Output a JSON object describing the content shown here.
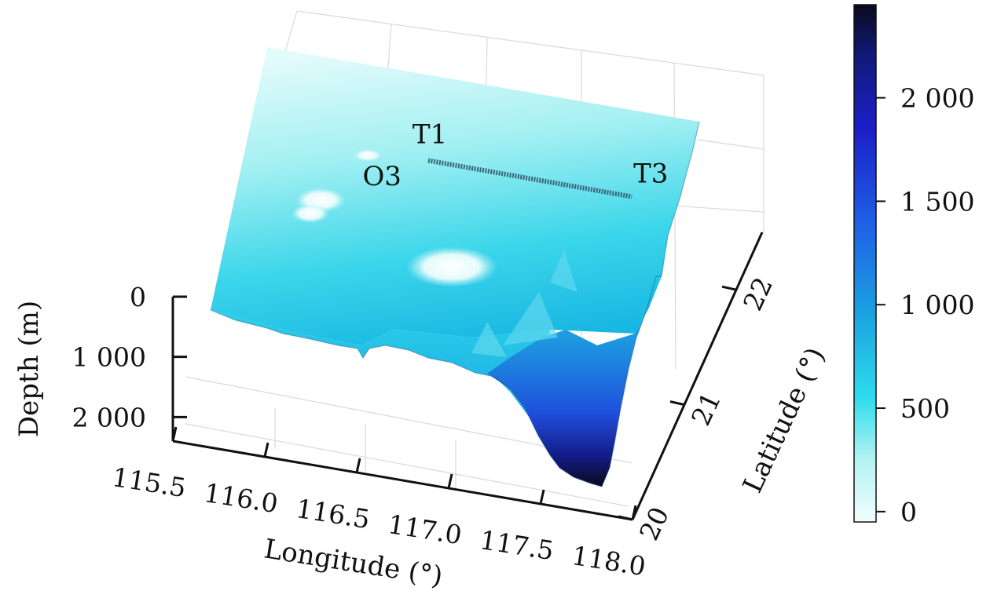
{
  "chart_data": {
    "type": "surface",
    "title": "",
    "x_axis": {
      "label": "Longitude (°)",
      "ticks": [
        "115.5",
        "116.0",
        "116.5",
        "117.0",
        "117.5",
        "118.0"
      ],
      "range": [
        115.5,
        118.0
      ]
    },
    "y_axis": {
      "label": "Latitude (°)",
      "ticks": [
        "20",
        "21",
        "22"
      ],
      "range": [
        20,
        22.5
      ]
    },
    "z_axis": {
      "label": "Depth (m)",
      "ticks": [
        "0",
        "1 000",
        "2 000"
      ],
      "range": [
        0,
        2400
      ]
    },
    "colorbar": {
      "ticks": [
        "0",
        "500",
        "1 000",
        "1 500",
        "2 000"
      ],
      "range": [
        -50,
        2450
      ],
      "colors": [
        "#f2fdfd",
        "#b3f3f3",
        "#2fdcec",
        "#1aa3e0",
        "#1f5fe6",
        "#1c1fc9",
        "#101a7a",
        "#0a0a1e"
      ]
    },
    "annotations": [
      {
        "text": "T1",
        "lon": 116.55,
        "lat": 21.65
      },
      {
        "text": "O3",
        "lon": 116.45,
        "lat": 21.55
      },
      {
        "text": "T3",
        "lon": 117.75,
        "lat": 21.55
      }
    ],
    "track": {
      "from": {
        "lon": 116.55,
        "lat": 21.65
      },
      "to": {
        "lon": 117.75,
        "lat": 21.55
      }
    },
    "depth_profile_near_lon_118": [
      {
        "lat": 20.2,
        "depth": 2400
      },
      {
        "lat": 20.6,
        "depth": 1800
      },
      {
        "lat": 21.0,
        "depth": 900
      },
      {
        "lat": 21.5,
        "depth": 400
      },
      {
        "lat": 22.0,
        "depth": 200
      }
    ]
  }
}
